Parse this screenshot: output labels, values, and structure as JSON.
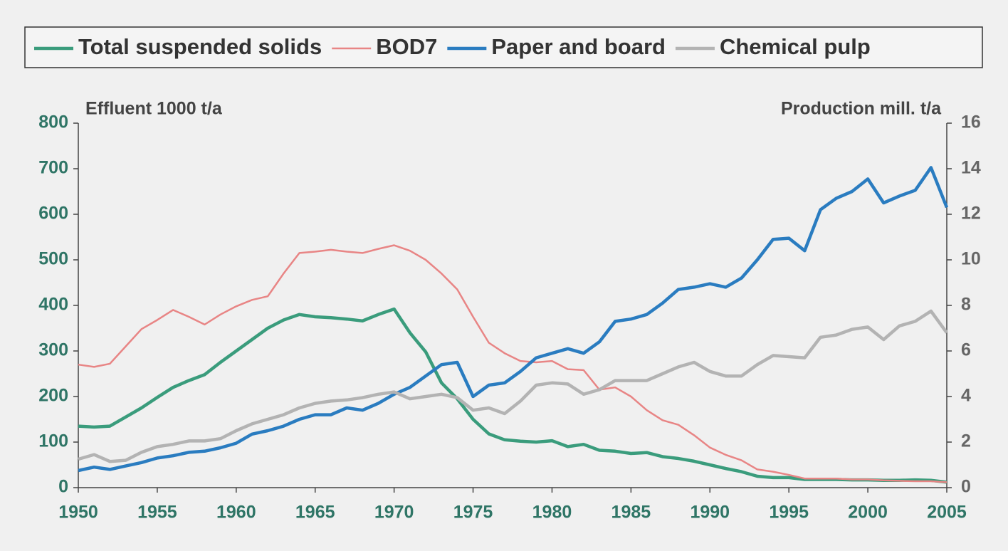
{
  "chart_data": {
    "type": "line",
    "axis_labels": {
      "y": "Effluent 1000 t/a",
      "y2": "Production mill. t/a"
    },
    "x": [
      1950,
      1951,
      1952,
      1953,
      1954,
      1955,
      1956,
      1957,
      1958,
      1959,
      1960,
      1961,
      1962,
      1963,
      1964,
      1965,
      1966,
      1967,
      1968,
      1969,
      1970,
      1971,
      1972,
      1973,
      1974,
      1975,
      1976,
      1977,
      1978,
      1979,
      1980,
      1981,
      1982,
      1983,
      1984,
      1985,
      1986,
      1987,
      1988,
      1989,
      1990,
      1991,
      1992,
      1993,
      1994,
      1995,
      1996,
      1997,
      1998,
      1999,
      2000,
      2001,
      2002,
      2003,
      2004,
      2005
    ],
    "xlim": [
      1950,
      2005
    ],
    "xticks": [
      1950,
      1955,
      1960,
      1965,
      1970,
      1975,
      1980,
      1985,
      1990,
      1995,
      2000,
      2005
    ],
    "ylim": [
      0,
      800
    ],
    "yticks": [
      0,
      100,
      200,
      300,
      400,
      500,
      600,
      700,
      800
    ],
    "y2lim": [
      0,
      16
    ],
    "y2ticks": [
      0,
      2,
      4,
      6,
      8,
      10,
      12,
      14,
      16
    ],
    "grid": false,
    "legend": "top",
    "series": [
      {
        "name": "Total suspended solids",
        "color": "#3a9c7c",
        "axis": "y",
        "values": [
          135,
          133,
          135,
          155,
          175,
          198,
          220,
          235,
          248,
          275,
          300,
          325,
          350,
          368,
          380,
          375,
          373,
          370,
          366,
          380,
          392,
          340,
          298,
          230,
          195,
          150,
          118,
          105,
          102,
          100,
          103,
          90,
          95,
          82,
          80,
          75,
          77,
          68,
          64,
          58,
          50,
          42,
          35,
          25,
          22,
          22,
          18,
          18,
          18,
          17,
          17,
          16,
          16,
          17,
          16,
          12
        ]
      },
      {
        "name": "BOD7",
        "color": "#e88585",
        "axis": "y",
        "values": [
          270,
          265,
          272,
          310,
          348,
          368,
          390,
          375,
          358,
          380,
          398,
          412,
          420,
          470,
          515,
          518,
          522,
          518,
          515,
          524,
          532,
          520,
          500,
          470,
          435,
          375,
          318,
          295,
          278,
          275,
          278,
          260,
          258,
          215,
          220,
          200,
          170,
          148,
          138,
          115,
          88,
          72,
          60,
          40,
          35,
          28,
          20,
          20,
          20,
          18,
          18,
          16,
          15,
          14,
          14,
          12
        ]
      },
      {
        "name": "Paper and board",
        "color": "#2a7cc0",
        "axis": "y2",
        "values": [
          0.75,
          0.9,
          0.8,
          0.95,
          1.1,
          1.3,
          1.4,
          1.55,
          1.6,
          1.75,
          1.95,
          2.35,
          2.5,
          2.7,
          3.0,
          3.2,
          3.2,
          3.5,
          3.4,
          3.7,
          4.1,
          4.4,
          4.9,
          5.4,
          5.5,
          4.0,
          4.5,
          4.6,
          5.1,
          5.7,
          5.9,
          6.1,
          5.9,
          6.4,
          7.3,
          7.4,
          7.6,
          8.1,
          8.7,
          8.8,
          8.95,
          8.8,
          9.2,
          10.0,
          10.9,
          10.95,
          10.4,
          12.2,
          12.7,
          13.0,
          13.55,
          12.5,
          12.8,
          13.05,
          14.05,
          12.3
        ]
      },
      {
        "name": "Chemical pulp",
        "color": "#b3b3b3",
        "axis": "y2",
        "values": [
          1.25,
          1.45,
          1.15,
          1.2,
          1.55,
          1.8,
          1.9,
          2.05,
          2.05,
          2.15,
          2.5,
          2.8,
          3.0,
          3.2,
          3.5,
          3.7,
          3.8,
          3.85,
          3.95,
          4.1,
          4.2,
          3.9,
          4.0,
          4.1,
          3.95,
          3.4,
          3.5,
          3.25,
          3.8,
          4.5,
          4.6,
          4.55,
          4.1,
          4.3,
          4.7,
          4.7,
          4.7,
          5.0,
          5.3,
          5.5,
          5.1,
          4.9,
          4.9,
          5.4,
          5.8,
          5.75,
          5.7,
          6.6,
          6.7,
          6.95,
          7.05,
          6.5,
          7.1,
          7.3,
          7.75,
          6.8
        ]
      }
    ]
  }
}
